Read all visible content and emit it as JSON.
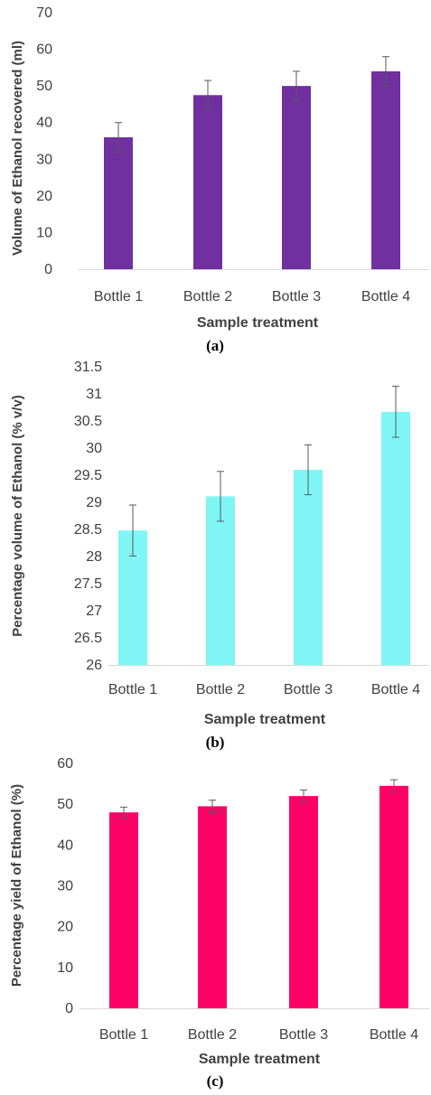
{
  "chart_data": [
    {
      "type": "bar",
      "panel_label": "(a)",
      "categories": [
        "Bottle 1",
        "Bottle 2",
        "Bottle 3",
        "Bottle 4"
      ],
      "values": [
        36,
        47.5,
        50,
        54
      ],
      "error": [
        4,
        4,
        4,
        4
      ],
      "color": "#7030A0",
      "xlabel": "Sample treatment",
      "ylabel": "Volume of Ethanol recovered (ml)",
      "ylim": [
        0,
        70
      ],
      "yticks": [
        "0",
        "10",
        "20",
        "30",
        "40",
        "50",
        "60",
        "70"
      ],
      "tick_values": [
        0,
        10,
        20,
        30,
        40,
        50,
        60,
        70
      ],
      "grid": false
    },
    {
      "type": "bar",
      "panel_label": "(b)",
      "categories": [
        "Bottle 1",
        "Bottle 2",
        "Bottle 3",
        "Bottle 4"
      ],
      "values": [
        28.48,
        29.11,
        29.6,
        30.67
      ],
      "error": [
        0.47,
        0.46,
        0.46,
        0.47
      ],
      "color": "#80F5F5",
      "xlabel": "Sample treatment",
      "ylabel": "Percentage volume of Ethanol (% v/v)",
      "ylim": [
        26,
        31.5
      ],
      "yticks": [
        "26",
        "26.5",
        "27",
        "27.5",
        "28",
        "28.5",
        "29",
        "29.5",
        "30",
        "30.5",
        "31",
        "31.5"
      ],
      "tick_values": [
        26,
        26.5,
        27,
        27.5,
        28,
        28.5,
        29,
        29.5,
        30,
        30.5,
        31,
        31.5
      ],
      "grid": false
    },
    {
      "type": "bar",
      "panel_label": "(c)",
      "categories": [
        "Bottle 1",
        "Bottle 2",
        "Bottle 3",
        "Bottle 4"
      ],
      "values": [
        48,
        49.5,
        52,
        54.5
      ],
      "error": [
        1.3,
        1.5,
        1.5,
        1.5
      ],
      "color": "#FF0066",
      "xlabel": "Sample treatment",
      "ylabel": "Percentage yield of Ethanol (%)",
      "ylim": [
        0,
        60
      ],
      "yticks": [
        "0",
        "10",
        "20",
        "30",
        "40",
        "50",
        "60"
      ],
      "tick_values": [
        0,
        10,
        20,
        30,
        40,
        50,
        60
      ],
      "grid": false
    }
  ]
}
